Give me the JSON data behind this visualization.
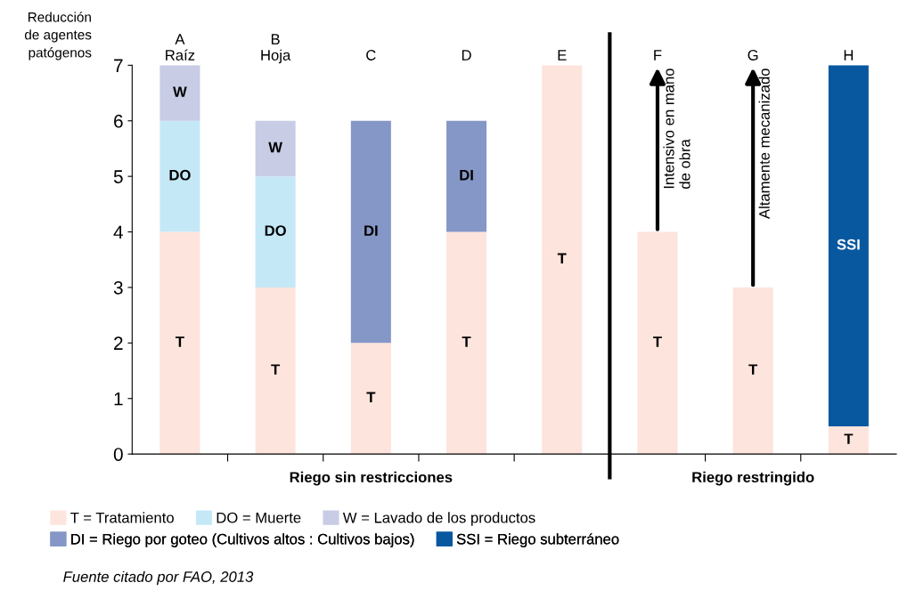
{
  "chart_data": {
    "type": "bar",
    "stacked": true,
    "ylabel": "Reducción\nde agentes\npatógenos",
    "categories": [
      "A\nRaíz",
      "B\nHoja",
      "C",
      "D",
      "E",
      "F",
      "G",
      "H"
    ],
    "series": [
      {
        "name": "T = Tratamiento",
        "color": "#fde4dc",
        "values": [
          4,
          3,
          2,
          4,
          7,
          4,
          3,
          0.5
        ],
        "value_labels": [
          "T",
          "T",
          "T",
          "T",
          "T",
          "T",
          "T",
          "T"
        ]
      },
      {
        "name": "DO = Muerte",
        "color": "#c5e8f7",
        "values": [
          2,
          2,
          null,
          null,
          null,
          null,
          null,
          null
        ],
        "value_labels": [
          "DO",
          "DO",
          null,
          null,
          null,
          null,
          null,
          null
        ]
      },
      {
        "name": "W = Lavado de los productos",
        "color": "#c8cce4",
        "values": [
          1,
          1,
          null,
          null,
          null,
          null,
          null,
          null
        ],
        "value_labels": [
          "W",
          "W",
          null,
          null,
          null,
          null,
          null,
          null
        ]
      },
      {
        "name": "DI = Riego por goteo (Cultivos altos : Cultivos bajos)",
        "color": "#8597c6",
        "values": [
          null,
          null,
          4,
          2,
          null,
          null,
          null,
          null
        ],
        "value_labels": [
          null,
          null,
          "DI",
          "DI",
          null,
          null,
          null,
          null
        ]
      },
      {
        "name": "SSI = Riego subterráneo",
        "color": "#0858a0",
        "values": [
          null,
          null,
          null,
          null,
          null,
          null,
          null,
          6.5
        ],
        "value_labels": [
          null,
          null,
          null,
          null,
          null,
          null,
          null,
          "SSI"
        ]
      }
    ],
    "ylim": [
      0,
      7
    ],
    "yticks": [
      0,
      1,
      2,
      3,
      4,
      5,
      6,
      7
    ],
    "annotations": [
      "Riego sin restricciones",
      "Riego restringido",
      "Intensivo en mano\nde obra",
      "Altamente mecanizado",
      "Fuente citado por FAO, 2013"
    ],
    "legend": "bottom",
    "grid": false
  }
}
